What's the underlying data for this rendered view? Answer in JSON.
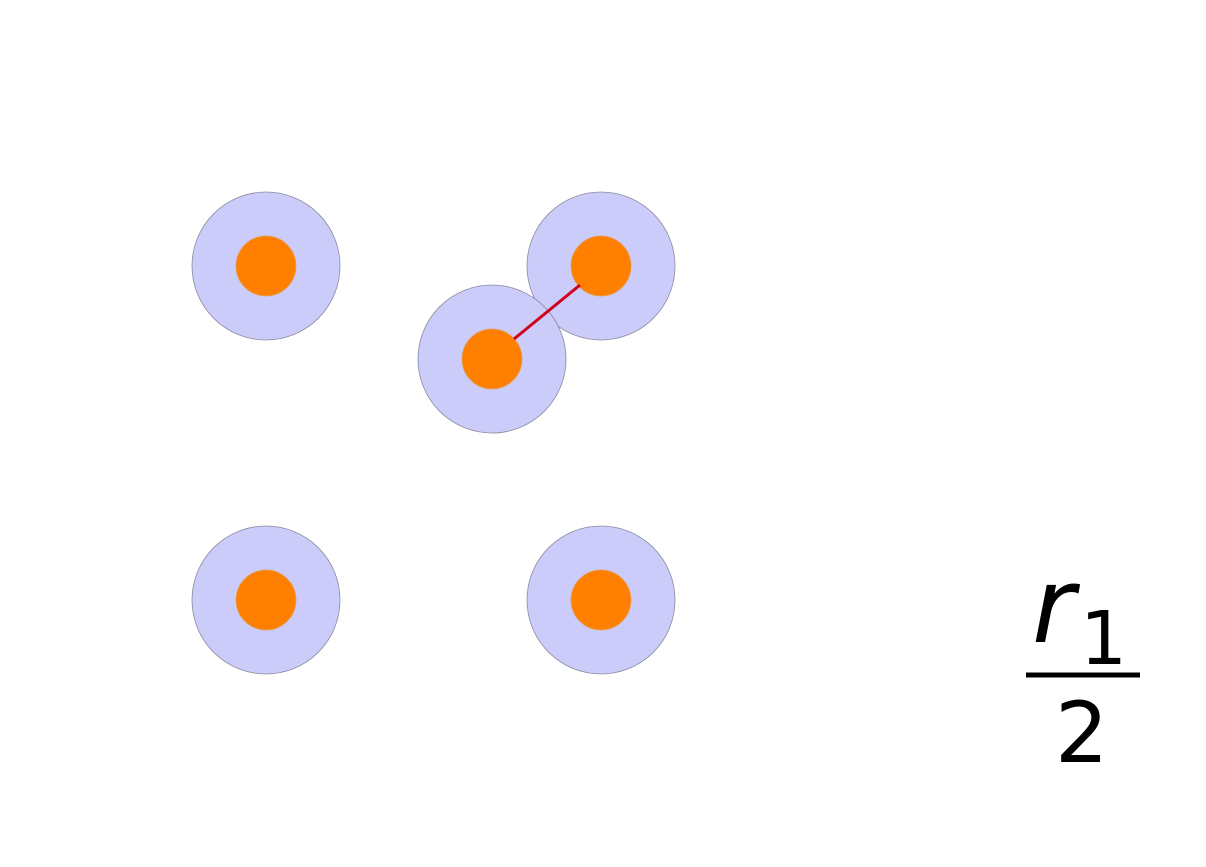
{
  "diagram": {
    "label": {
      "numerator_var": "r",
      "numerator_sub": "1",
      "denominator": "2"
    },
    "colors": {
      "halo_fill": "#ccccfa",
      "core_fill": "#ff8000",
      "link": "#d0001c"
    }
  }
}
